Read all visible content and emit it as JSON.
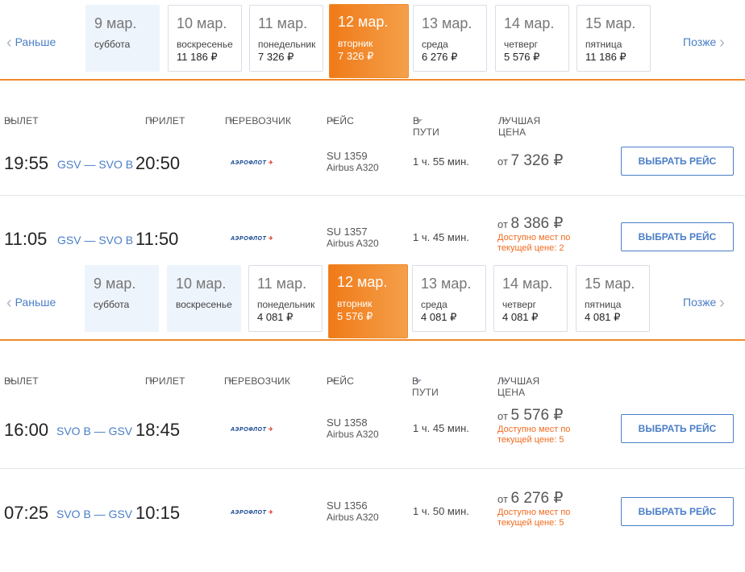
{
  "nav": {
    "prev": "Раньше",
    "next": "Позже"
  },
  "block1": {
    "dates": [
      {
        "date": "9 мар.",
        "weekday": "суббота",
        "price": ""
      },
      {
        "date": "10 мар.",
        "weekday": "воскресенье",
        "price": "11 186 ₽"
      },
      {
        "date": "11 мар.",
        "weekday": "понедельник",
        "price": "7 326 ₽"
      },
      {
        "date": "12 мар.",
        "weekday": "вторник",
        "price": "7 326 ₽"
      },
      {
        "date": "13 мар.",
        "weekday": "среда",
        "price": "6 276 ₽"
      },
      {
        "date": "14 мар.",
        "weekday": "четверг",
        "price": "5 576 ₽"
      },
      {
        "date": "15 мар.",
        "weekday": "пятница",
        "price": "11 186 ₽"
      }
    ],
    "flights": [
      {
        "dep": "19:55",
        "route": "GSV — SVO B",
        "arr": "20:50",
        "carrier": "АЭРОФЛОТ",
        "num": "SU 1359",
        "plane": "Airbus A320",
        "dur": "1 ч. 55 мин.",
        "from": "от",
        "price": "7 326 ₽",
        "avail": "",
        "btn": "ВЫБРАТЬ РЕЙС"
      },
      {
        "dep": "11:05",
        "route": "GSV — SVO B",
        "arr": "11:50",
        "carrier": "АЭРОФЛОТ",
        "num": "SU 1357",
        "plane": "Airbus A320",
        "dur": "1 ч. 45 мин.",
        "from": "от",
        "price": "8 386 ₽",
        "avail": "Доступно мест по текущей цене: 2",
        "btn": "ВЫБРАТЬ РЕЙС"
      }
    ]
  },
  "block2": {
    "dates": [
      {
        "date": "9 мар.",
        "weekday": "суббота",
        "price": ""
      },
      {
        "date": "10 мар.",
        "weekday": "воскресенье",
        "price": ""
      },
      {
        "date": "11 мар.",
        "weekday": "понедельник",
        "price": "4 081 ₽"
      },
      {
        "date": "12 мар.",
        "weekday": "вторник",
        "price": "5 576 ₽"
      },
      {
        "date": "13 мар.",
        "weekday": "среда",
        "price": "4 081 ₽"
      },
      {
        "date": "14 мар.",
        "weekday": "четверг",
        "price": "4 081 ₽"
      },
      {
        "date": "15 мар.",
        "weekday": "пятница",
        "price": "4 081 ₽"
      }
    ],
    "flights": [
      {
        "dep": "16:00",
        "route": "SVO B — GSV",
        "arr": "18:45",
        "carrier": "АЭРОФЛОТ",
        "num": "SU 1358",
        "plane": "Airbus A320",
        "dur": "1 ч. 45 мин.",
        "from": "от",
        "price": "5 576 ₽",
        "avail": "Доступно мест по текущей цене: 5",
        "btn": "ВЫБРАТЬ РЕЙС"
      },
      {
        "dep": "07:25",
        "route": "SVO B — GSV",
        "arr": "10:15",
        "carrier": "АЭРОФЛОТ",
        "num": "SU 1356",
        "plane": "Airbus A320",
        "dur": "1 ч. 50 мин.",
        "from": "от",
        "price": "6 276 ₽",
        "avail": "Доступно мест по текущей цене: 5",
        "btn": "ВЫБРАТЬ РЕЙС"
      }
    ]
  },
  "headers": {
    "dep": "ВЫЛЕТ",
    "arr": "ПРИЛЕТ",
    "carrier": "ПЕРЕВОЗЧИК",
    "flight": "РЕЙС",
    "dur": "В ПУТИ",
    "price": "ЛУЧШАЯ ЦЕНА"
  },
  "colors": {
    "accent": "#f08a2a",
    "link": "#4a7ec7",
    "warning": "#f06b1f"
  }
}
